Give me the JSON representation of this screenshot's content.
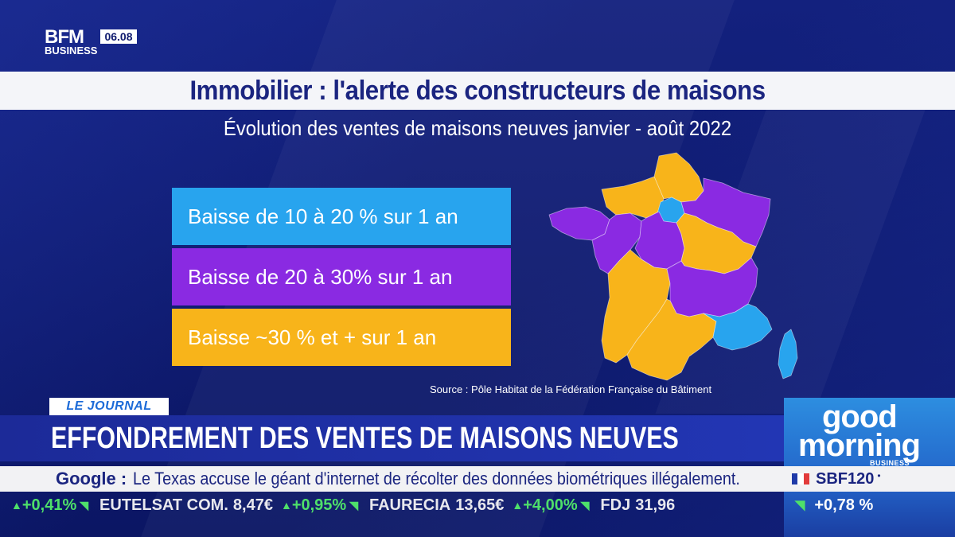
{
  "brand": {
    "logo_top": "BFM",
    "logo_bottom": "BUSINESS",
    "time": "06.08"
  },
  "main": {
    "title": "Immobilier : l'alerte des constructeurs de maisons",
    "subtitle": "Évolution des ventes de maisons neuves janvier - août 2022",
    "legend": [
      {
        "label": "Baisse de 10 à 20 % sur 1 an",
        "color": "#28a4ee"
      },
      {
        "label": "Baisse de 20 à 30% sur 1 an",
        "color": "#8a2ae2"
      },
      {
        "label": "Baisse ~30 % et + sur 1 an",
        "color": "#f8b41a"
      }
    ],
    "source": "Source : Pôle Habitat de la Fédération Française du Bâtiment"
  },
  "lower_third": {
    "tag": "LE JOURNAL",
    "headline": "EFFONDREMENT DES VENTES DE MAISONS NEUVES",
    "news_source": "Google :",
    "news_text": "Le Texas accuse le géant d'internet de récolter des données biométriques illégalement."
  },
  "stocks": [
    {
      "name": "",
      "price": "",
      "change": "+0,41%"
    },
    {
      "name": "EUTELSAT COM.",
      "price": "8,47€",
      "change": "+0,95%"
    },
    {
      "name": "FAURECIA",
      "price": "13,65€",
      "change": "+4,00%"
    },
    {
      "name": "FDJ",
      "price": "31,96",
      "change": ""
    }
  ],
  "show": {
    "logo_line1": "good",
    "logo_line2": "morning",
    "logo_sub": "BUSINESS",
    "index_name": "SBF120",
    "index_dot": "•",
    "index_change": "+0,78 %"
  }
}
